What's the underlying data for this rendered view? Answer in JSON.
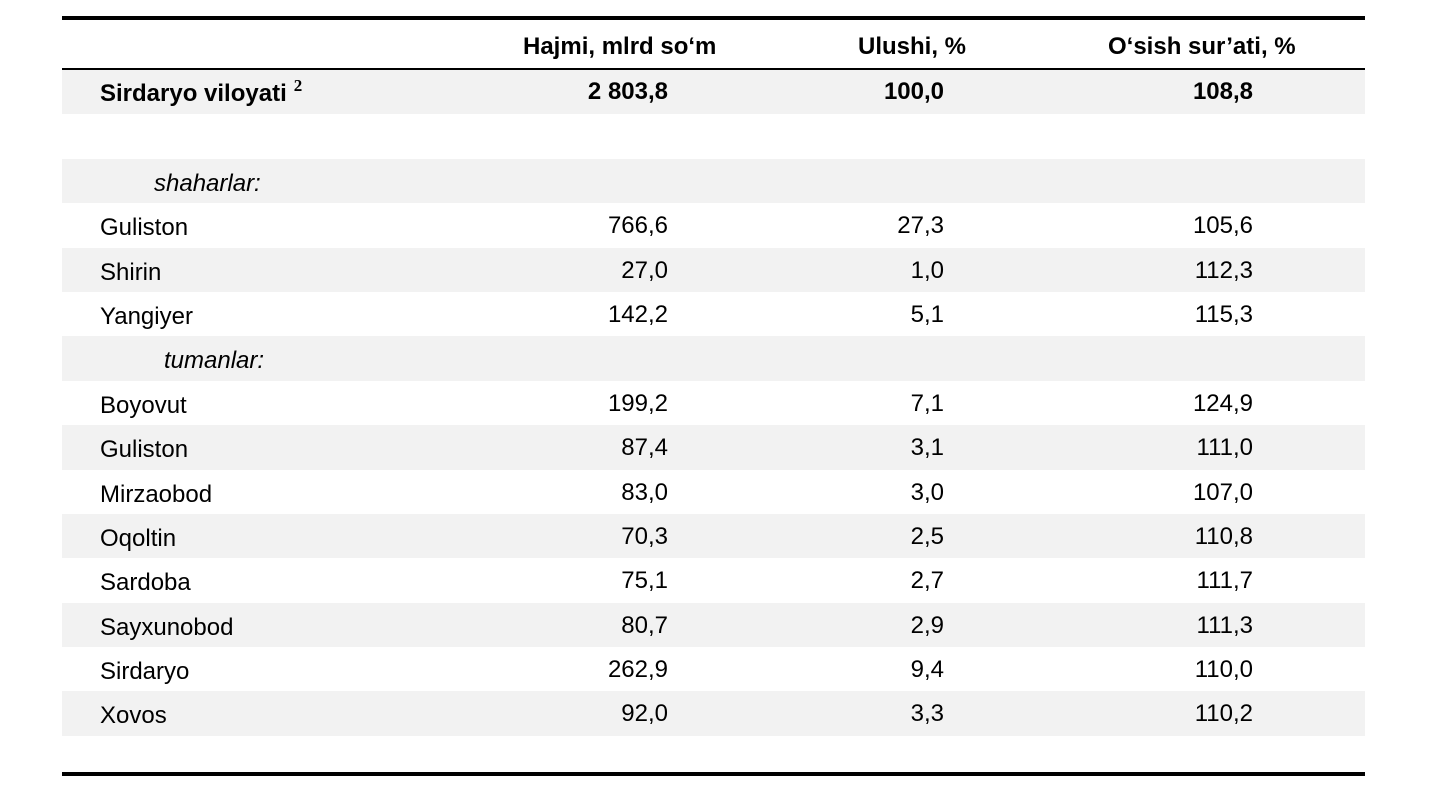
{
  "header": {
    "col1": "Hajmi, mlrd so‘m",
    "col2": "Ulushi, %",
    "col3": "O‘sish sur’ati, %"
  },
  "total": {
    "name": "Sirdaryo viloyati",
    "footnote": "2",
    "volume": "2 803,8",
    "share": "100,0",
    "growth": "108,8"
  },
  "cities_label": "shaharlar:",
  "cities": [
    {
      "name": "Guliston",
      "volume": "766,6",
      "share": "27,3",
      "growth": "105,6"
    },
    {
      "name": "Shirin",
      "volume": "27,0",
      "share": "1,0",
      "growth": "112,3"
    },
    {
      "name": "Yangiyer",
      "volume": "142,2",
      "share": "5,1",
      "growth": "115,3"
    }
  ],
  "districts_label": "tumanlar:",
  "districts": [
    {
      "name": "Boyovut",
      "volume": "199,2",
      "share": "7,1",
      "growth": "124,9"
    },
    {
      "name": "Guliston",
      "volume": "87,4",
      "share": "3,1",
      "growth": "111,0"
    },
    {
      "name": "Mirzaobod",
      "volume": "83,0",
      "share": "3,0",
      "growth": "107,0"
    },
    {
      "name": "Oqoltin",
      "volume": "70,3",
      "share": "2,5",
      "growth": "110,8"
    },
    {
      "name": "Sardoba",
      "volume": "75,1",
      "share": "2,7",
      "growth": "111,7"
    },
    {
      "name": "Sayxunobod",
      "volume": "80,7",
      "share": "2,9",
      "growth": "111,3"
    },
    {
      "name": "Sirdaryo",
      "volume": "262,9",
      "share": "9,4",
      "growth": "110,0"
    },
    {
      "name": "Xovos",
      "volume": "92,0",
      "share": "3,3",
      "growth": "110,2"
    }
  ],
  "colors": {
    "shade": "#f2f2f2",
    "text": "#000000",
    "rule": "#000000"
  }
}
